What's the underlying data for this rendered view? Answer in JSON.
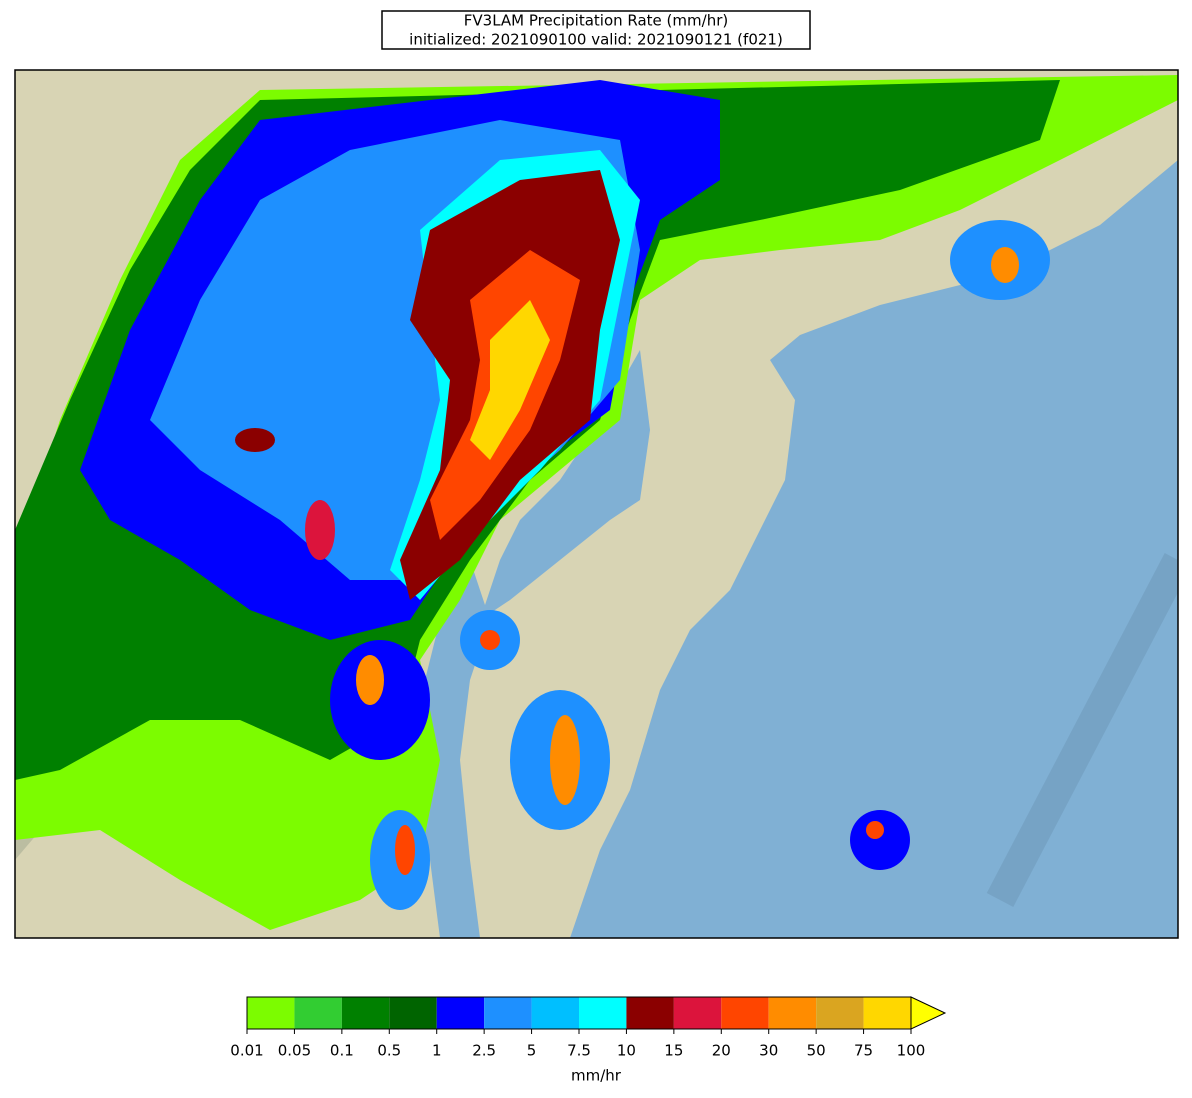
{
  "title": [
    "FV3LAM Precipitation Rate (mm/hr)",
    "initialized: 2021090100 valid: 2021090121 (f021)"
  ],
  "colorbar": {
    "ticks": [
      0.01,
      0.05,
      0.1,
      0.5,
      1,
      2.5,
      5,
      7.5,
      10,
      15,
      20,
      30,
      50,
      75,
      100
    ],
    "colors": [
      "#7cfc00",
      "#32cd32",
      "#008000",
      "#006400",
      "#0000ff",
      "#1e90ff",
      "#00bfff",
      "#00ffff",
      "#8b0000",
      "#dc143c",
      "#ff4500",
      "#ff8c00",
      "#daa520",
      "#ffd700"
    ],
    "over_color": "#ffff00",
    "label": "mm/hr"
  }
}
